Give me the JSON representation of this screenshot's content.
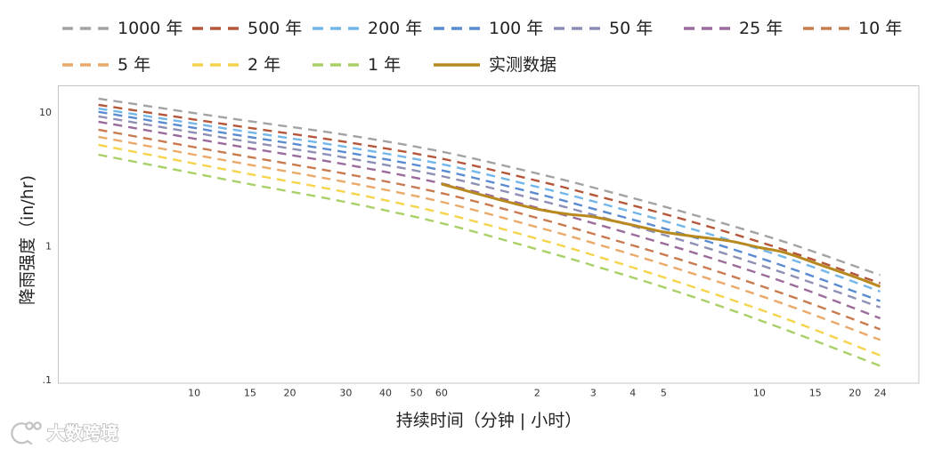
{
  "watermark": {
    "text": "大数跨境",
    "icon": "chat-bubble-logo-icon"
  },
  "chart_data": {
    "type": "line",
    "xlabel": "持续时间（分钟 | 小时）",
    "ylabel": "降雨强度（in/hr)",
    "xscale": "log",
    "yscale": "log",
    "xlim": [
      3.75,
      1905
    ],
    "ylim": [
      0.095,
      15.7
    ],
    "grid": false,
    "legend_position": "top",
    "x_ticks": [
      {
        "label": "10",
        "value": 10
      },
      {
        "label": "15",
        "value": 15
      },
      {
        "label": "20",
        "value": 20
      },
      {
        "label": "30",
        "value": 30
      },
      {
        "label": "40",
        "value": 40
      },
      {
        "label": "50",
        "value": 50
      },
      {
        "label": "60",
        "value": 60
      },
      {
        "label": "2",
        "value": 120
      },
      {
        "label": "3",
        "value": 180
      },
      {
        "label": "4",
        "value": 240
      },
      {
        "label": "5",
        "value": 300
      },
      {
        "label": "10",
        "value": 600
      },
      {
        "label": "15",
        "value": 900
      },
      {
        "label": "20",
        "value": 1200
      },
      {
        "label": "24",
        "value": 1440
      }
    ],
    "y_ticks": [
      {
        "label": "10",
        "value": 10
      },
      {
        "label": "1",
        "value": 1
      },
      {
        "label": ".1",
        "value": 0.1
      }
    ],
    "x": [
      5,
      10,
      15,
      30,
      60,
      120,
      180,
      360,
      720,
      1440
    ],
    "series": [
      {
        "name": "1000 年",
        "color": "#a3a3a3",
        "style": "dashed",
        "values": [
          12.7,
          9.9,
          8.6,
          6.8,
          5.1,
          3.5,
          2.75,
          1.76,
          1.08,
          0.61
        ]
      },
      {
        "name": "500 年",
        "color": "#b5573a",
        "style": "dashed",
        "values": [
          11.4,
          8.86,
          7.66,
          6.02,
          4.52,
          3.09,
          2.42,
          1.55,
          0.94,
          0.53
        ]
      },
      {
        "name": "200 年",
        "color": "#73b6ea",
        "style": "dashed",
        "values": [
          10.7,
          8.26,
          7.11,
          5.53,
          4.11,
          2.78,
          2.17,
          1.37,
          0.83,
          0.46
        ]
      },
      {
        "name": "100 年",
        "color": "#5b8bd0",
        "style": "dashed",
        "values": [
          10.1,
          7.67,
          6.55,
          5.04,
          3.7,
          2.47,
          1.91,
          1.2,
          0.71,
          0.39
        ]
      },
      {
        "name": "50 年",
        "color": "#8e8fb5",
        "style": "dashed",
        "values": [
          9.35,
          7.07,
          6.01,
          4.59,
          3.35,
          2.23,
          1.72,
          1.07,
          0.63,
          0.35
        ]
      },
      {
        "name": "25 年",
        "color": "#9b6b9c",
        "style": "dashed",
        "values": [
          8.53,
          6.38,
          5.4,
          4.09,
          2.95,
          1.94,
          1.49,
          0.92,
          0.54,
          0.29
        ]
      },
      {
        "name": "10 年",
        "color": "#c97b4f",
        "style": "dashed",
        "values": [
          7.43,
          5.51,
          4.64,
          3.48,
          2.5,
          1.63,
          1.24,
          0.76,
          0.44,
          0.24
        ]
      },
      {
        "name": "5 年",
        "color": "#ebaa6a",
        "style": "dashed",
        "values": [
          6.58,
          4.84,
          4.06,
          3.02,
          2.15,
          1.39,
          1.06,
          0.64,
          0.37,
          0.2
        ]
      },
      {
        "name": "2 年",
        "color": "#f6d44c",
        "style": "dashed",
        "values": [
          5.73,
          4.16,
          3.46,
          2.54,
          1.78,
          1.14,
          0.86,
          0.51,
          0.29,
          0.153
        ]
      },
      {
        "name": "1 年",
        "color": "#a9d167",
        "style": "dashed",
        "values": [
          4.84,
          3.51,
          2.91,
          2.14,
          1.49,
          0.95,
          0.72,
          0.43,
          0.24,
          0.128
        ]
      },
      {
        "name": "实测数据",
        "color": "#b8891e",
        "style": "solid",
        "x": [
          60,
          90,
          120,
          150,
          180,
          240,
          300,
          360,
          480,
          600,
          720,
          900,
          1200,
          1440
        ],
        "values": [
          2.92,
          2.25,
          1.9,
          1.74,
          1.66,
          1.44,
          1.28,
          1.2,
          1.1,
          0.98,
          0.9,
          0.75,
          0.59,
          0.5
        ]
      }
    ]
  }
}
